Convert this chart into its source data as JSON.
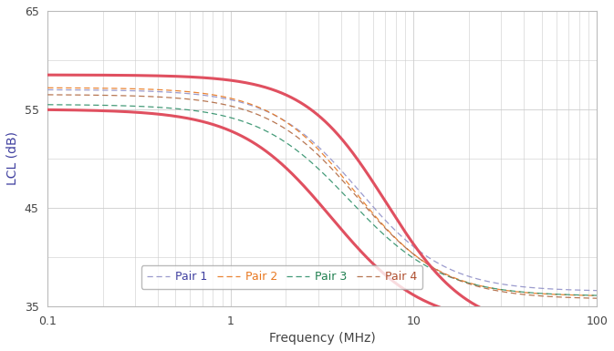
{
  "xlabel": "Frequency (MHz)",
  "ylabel": "LCL (dB)",
  "xlim": [
    0.1,
    100
  ],
  "ylim": [
    35,
    65
  ],
  "yticks": [
    35,
    45,
    55,
    65
  ],
  "grid_color": "#cccccc",
  "pair_colors": [
    "#9090c8",
    "#e87820",
    "#30906a",
    "#b06840"
  ],
  "pair_labels": [
    "Pair 1",
    "Pair 2",
    "Pair 3",
    "Pair 4"
  ],
  "red_color": "#e05060",
  "legend_text_colors": [
    "#4040a0",
    "#e87820",
    "#208050",
    "#b05030"
  ]
}
